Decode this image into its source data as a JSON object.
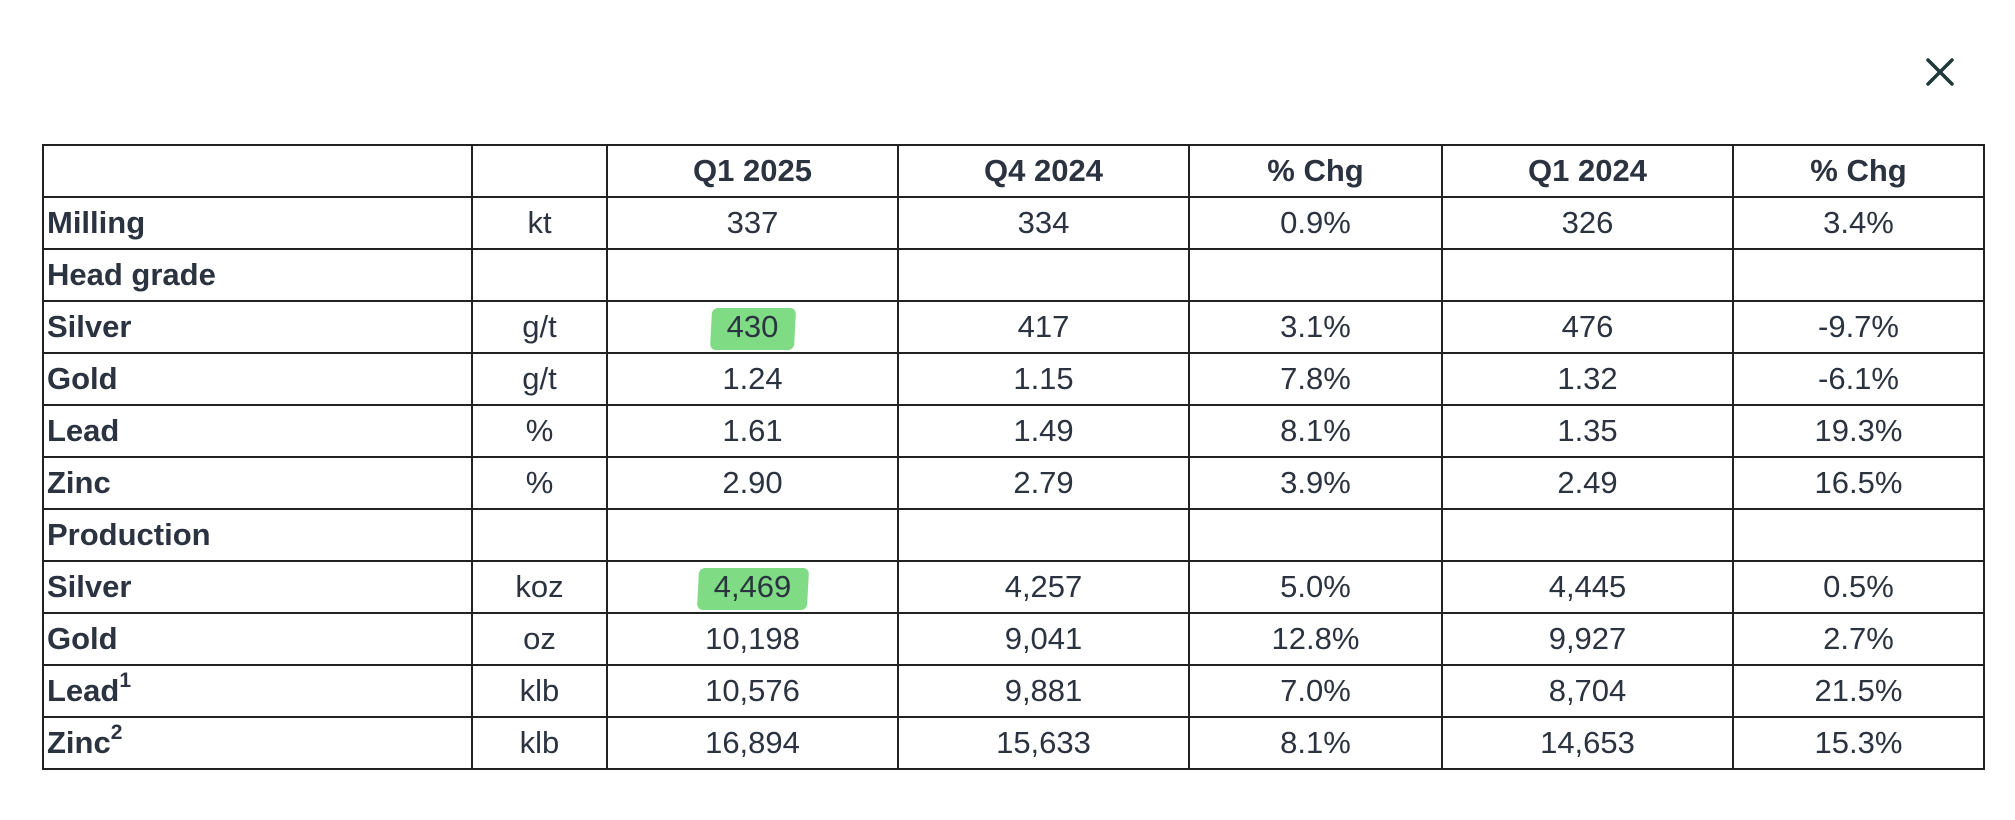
{
  "close_button": {
    "icon": "close-icon",
    "color": "#1f3a3a"
  },
  "highlight_color": "#7fdc85",
  "table": {
    "headers": [
      "",
      "",
      "Q1 2025",
      "Q4 2024",
      "% Chg",
      "Q1 2024",
      "% Chg"
    ],
    "rows": [
      {
        "label": "Milling",
        "sup": "",
        "unit": "kt",
        "values": [
          "337",
          "334",
          "0.9%",
          "326",
          "3.4%"
        ]
      },
      {
        "label": "Head grade",
        "sup": "",
        "unit": "",
        "values": [
          "",
          "",
          "",
          "",
          ""
        ]
      },
      {
        "label": "Silver",
        "sup": "",
        "unit": "g/t",
        "values": [
          "430",
          "417",
          "3.1%",
          "476",
          "-9.7%"
        ]
      },
      {
        "label": "Gold",
        "sup": "",
        "unit": "g/t",
        "values": [
          "1.24",
          "1.15",
          "7.8%",
          "1.32",
          "-6.1%"
        ]
      },
      {
        "label": "Lead",
        "sup": "",
        "unit": "%",
        "values": [
          "1.61",
          "1.49",
          "8.1%",
          "1.35",
          "19.3%"
        ]
      },
      {
        "label": "Zinc",
        "sup": "",
        "unit": "%",
        "values": [
          "2.90",
          "2.79",
          "3.9%",
          "2.49",
          "16.5%"
        ]
      },
      {
        "label": "Production",
        "sup": "",
        "unit": "",
        "values": [
          "",
          "",
          "",
          "",
          ""
        ]
      },
      {
        "label": "Silver",
        "sup": "",
        "unit": "koz",
        "values": [
          "4,469",
          "4,257",
          "5.0%",
          "4,445",
          "0.5%"
        ]
      },
      {
        "label": "Gold",
        "sup": "",
        "unit": "oz",
        "values": [
          "10,198",
          "9,041",
          "12.8%",
          "9,927",
          "2.7%"
        ]
      },
      {
        "label": "Lead",
        "sup": "1",
        "unit": "klb",
        "values": [
          "10,576",
          "9,881",
          "7.0%",
          "8,704",
          "21.5%"
        ]
      },
      {
        "label": "Zinc",
        "sup": "2",
        "unit": "klb",
        "values": [
          "16,894",
          "15,633",
          "8.1%",
          "14,653",
          "15.3%"
        ]
      }
    ]
  }
}
